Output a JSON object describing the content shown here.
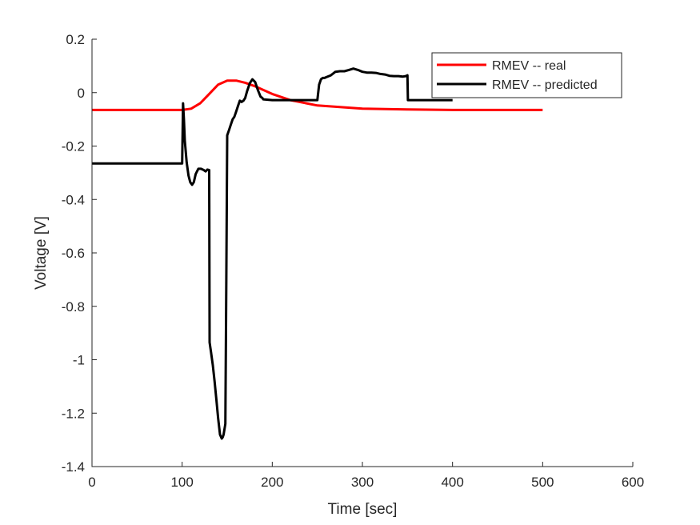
{
  "chart_data": {
    "type": "line",
    "title": "",
    "xlabel": "Time [sec]",
    "ylabel": "Voltage [V]",
    "xlim": [
      0,
      600
    ],
    "ylim": [
      -1.4,
      0.2
    ],
    "xticks": [
      0,
      100,
      200,
      300,
      400,
      500,
      600
    ],
    "yticks": [
      -1.4,
      -1.2,
      -1,
      -0.8,
      -0.6,
      -0.4,
      -0.2,
      0,
      0.2
    ],
    "xtick_labels": [
      "0",
      "100",
      "200",
      "300",
      "400",
      "500",
      "600"
    ],
    "ytick_labels": [
      "-1.4",
      "-1.2",
      "-1",
      "-0.8",
      "-0.6",
      "-0.4",
      "-0.2",
      "0",
      "0.2"
    ],
    "grid": false,
    "legend_position": "top-right",
    "series": [
      {
        "name": "RMEV -- real",
        "color": "#ff0000",
        "x": [
          0,
          100,
          110,
          120,
          130,
          140,
          150,
          160,
          170,
          180,
          190,
          200,
          220,
          250,
          300,
          350,
          400,
          450,
          500
        ],
        "y": [
          -0.065,
          -0.065,
          -0.06,
          -0.04,
          -0.005,
          0.03,
          0.045,
          0.045,
          0.037,
          0.025,
          0.01,
          -0.005,
          -0.028,
          -0.048,
          -0.06,
          -0.063,
          -0.065,
          -0.065,
          -0.065
        ]
      },
      {
        "name": "RMEV -- predicted",
        "color": "#000000",
        "x": [
          0,
          100,
          101,
          102,
          103,
          105,
          107,
          109,
          111,
          113,
          115,
          118,
          121,
          124,
          126,
          128,
          130,
          130.5,
          132,
          134,
          136,
          138,
          140,
          142,
          144,
          145,
          146,
          148,
          149,
          150,
          152,
          154,
          156,
          158,
          160,
          162,
          164,
          166,
          168,
          170,
          172,
          175,
          178,
          181,
          184,
          187,
          189,
          190,
          200,
          210,
          250,
          252,
          254,
          256,
          258,
          260,
          265,
          270,
          275,
          280,
          285,
          290,
          295,
          300,
          305,
          310,
          315,
          320,
          325,
          330,
          335,
          340,
          345,
          348,
          350,
          350.5,
          400
        ],
        "y": [
          -0.265,
          -0.265,
          -0.04,
          -0.1,
          -0.18,
          -0.26,
          -0.31,
          -0.335,
          -0.345,
          -0.335,
          -0.305,
          -0.285,
          -0.285,
          -0.29,
          -0.295,
          -0.288,
          -0.29,
          -0.935,
          -0.97,
          -1.02,
          -1.08,
          -1.15,
          -1.22,
          -1.28,
          -1.295,
          -1.29,
          -1.28,
          -1.24,
          -0.7,
          -0.16,
          -0.14,
          -0.12,
          -0.1,
          -0.09,
          -0.07,
          -0.05,
          -0.03,
          -0.035,
          -0.03,
          -0.02,
          0.005,
          0.035,
          0.05,
          0.04,
          0.01,
          -0.015,
          -0.02,
          -0.025,
          -0.028,
          -0.028,
          -0.028,
          0.03,
          0.05,
          0.055,
          0.055,
          0.058,
          0.065,
          0.078,
          0.08,
          0.08,
          0.085,
          0.09,
          0.085,
          0.078,
          0.075,
          0.075,
          0.074,
          0.07,
          0.068,
          0.063,
          0.062,
          0.062,
          0.06,
          0.062,
          0.065,
          -0.028,
          -0.028
        ]
      }
    ]
  }
}
